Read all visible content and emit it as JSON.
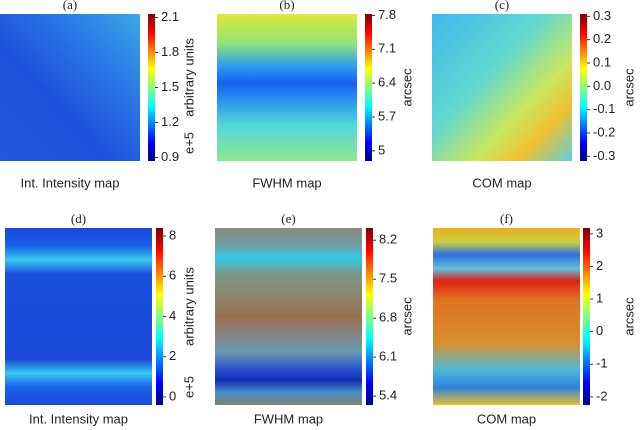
{
  "chart_data": [
    {
      "type": "heatmap",
      "panel_label": "(a)",
      "caption": "Int. Intensity map",
      "colorbar_label": "arbitrary units",
      "offset_label": "e+5",
      "zlim": [
        0.87,
        2.13
      ],
      "zticks": [
        0.9,
        1.2,
        1.5,
        1.8,
        2.1
      ]
    },
    {
      "type": "heatmap",
      "panel_label": "(b)",
      "caption": "FWHM map",
      "colorbar_label": "arcsec",
      "zlim": [
        4.79,
        7.83
      ],
      "zticks": [
        5,
        5.7,
        6.4,
        7.1,
        7.8
      ]
    },
    {
      "type": "heatmap",
      "panel_label": "(c)",
      "caption": "COM map",
      "colorbar_label": "arcsec",
      "zlim": [
        -0.32,
        0.31
      ],
      "zticks": [
        0.3,
        0.2,
        0.1,
        {
          "value": 0,
          "label": "0.0"
        },
        -0.1,
        -0.2,
        -0.3
      ]
    },
    {
      "type": "heatmap",
      "panel_label": "(d)",
      "caption": "Int. Intensity map",
      "colorbar_label": "arbitrary units",
      "offset_label": "e+5",
      "zlim": [
        -0.4,
        8.4
      ],
      "zticks": [
        0,
        2,
        4,
        6,
        8
      ]
    },
    {
      "type": "heatmap",
      "panel_label": "(e)",
      "caption": "FWHM map",
      "colorbar_label": "arcsec",
      "zlim": [
        5.24,
        8.42
      ],
      "zticks": [
        5.4,
        6.1,
        6.8,
        7.5,
        8.2
      ]
    },
    {
      "type": "heatmap",
      "panel_label": "(f)",
      "caption": "COM map",
      "colorbar_label": "arcsec",
      "zlim": [
        -2.25,
        3.18
      ],
      "zticks": [
        3,
        2,
        1,
        0,
        -1,
        -2
      ]
    }
  ]
}
